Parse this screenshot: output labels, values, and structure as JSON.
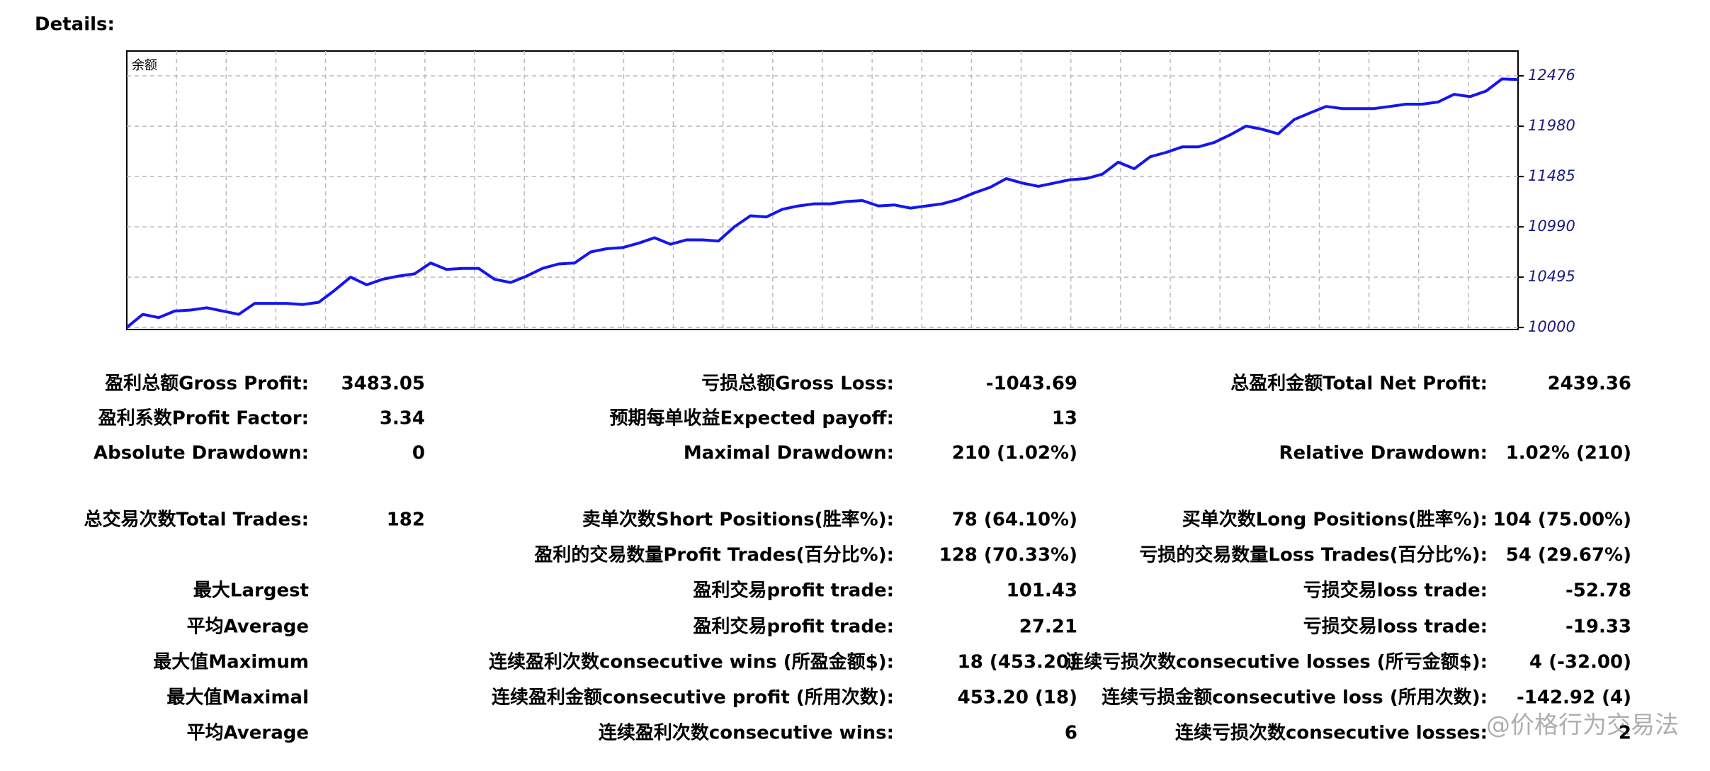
{
  "heading": "Details:",
  "chart_data": {
    "type": "line",
    "title": "余额",
    "color": "#1515f0",
    "grid": true,
    "ylim": [
      9980,
      12720
    ],
    "yticks": [
      10000,
      10495,
      10990,
      11485,
      11980,
      12476
    ],
    "values": [
      10000,
      10129,
      10097,
      10162,
      10172,
      10194,
      10162,
      10129,
      10237,
      10237,
      10237,
      10226,
      10248,
      10366,
      10495,
      10420,
      10474,
      10506,
      10528,
      10635,
      10571,
      10582,
      10582,
      10474,
      10442,
      10506,
      10582,
      10625,
      10635,
      10743,
      10775,
      10786,
      10829,
      10883,
      10819,
      10862,
      10862,
      10851,
      10991,
      11099,
      11088,
      11163,
      11196,
      11217,
      11217,
      11239,
      11249,
      11196,
      11206,
      11174,
      11196,
      11217,
      11260,
      11325,
      11379,
      11465,
      11421,
      11389,
      11421,
      11454,
      11465,
      11508,
      11626,
      11562,
      11680,
      11723,
      11777,
      11777,
      11820,
      11896,
      11982,
      11950,
      11906,
      12046,
      12111,
      12175,
      12154,
      12154,
      12154,
      12175,
      12197,
      12197,
      12218,
      12294,
      12272,
      12326,
      12445,
      12439
    ]
  },
  "table": {
    "rows": [
      [
        "盈利总额Gross Profit:",
        "3483.05",
        "亏损总额Gross Loss:",
        "-1043.69",
        "总盈利金额Total Net Profit:",
        "2439.36"
      ],
      [
        "盈利系数Profit Factor:",
        "3.34",
        "预期每单收益Expected payoff:",
        "13",
        null,
        null
      ],
      [
        "Absolute Drawdown:",
        "0",
        "Maximal Drawdown:",
        "210 (1.02%)",
        "Relative Drawdown:",
        "1.02% (210)"
      ],
      [
        "总交易次数Total Trades:",
        "182",
        "卖单次数Short Positions(胜率%):",
        "78 (64.10%)",
        "买单次数Long Positions(胜率%):",
        "104 (75.00%)"
      ],
      [
        null,
        null,
        "盈利的交易数量Profit Trades(百分比%):",
        "128 (70.33%)",
        "亏损的交易数量Loss Trades(百分比%):",
        "54 (29.67%)"
      ],
      [
        "最大Largest",
        null,
        "盈利交易profit trade:",
        "101.43",
        "亏损交易loss trade:",
        "-52.78"
      ],
      [
        "平均Average",
        null,
        "盈利交易profit trade:",
        "27.21",
        "亏损交易loss trade:",
        "-19.33"
      ],
      [
        "最大值Maximum",
        null,
        "连续盈利次数consecutive wins (所盈金额$):",
        "18 (453.20)",
        "连续亏损次数consecutive losses (所亏金额$):",
        "4 (-32.00)"
      ],
      [
        "最大值Maximal",
        null,
        "连续盈利金额consecutive profit (所用次数):",
        "453.20 (18)",
        "连续亏损金额consecutive loss (所用次数):",
        "-142.92 (4)"
      ],
      [
        "平均Average",
        null,
        "连续盈利次数consecutive wins:",
        "6",
        "连续亏损次数consecutive losses:",
        "2"
      ]
    ]
  },
  "watermark": "@价格行为交易法"
}
